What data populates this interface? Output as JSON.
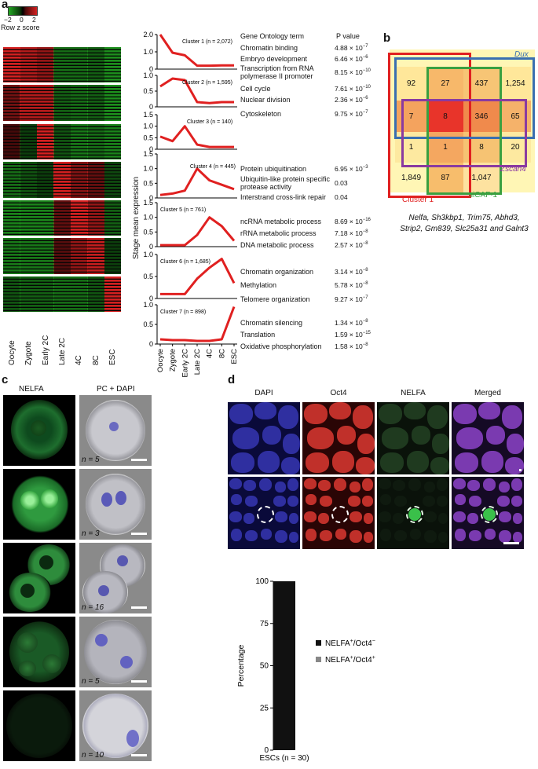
{
  "panel_a": {
    "letter": "a",
    "colorbar": {
      "ticks": [
        "−2",
        "0",
        "2"
      ],
      "label": "Row z score",
      "colors": [
        "#22a822",
        "#000000",
        "#d42020"
      ]
    },
    "heatmap_columns": [
      "Oocyte",
      "Zygote",
      "Early 2C",
      "Late 2C",
      "4C",
      "8C",
      "ESC"
    ],
    "go_header": "Gene Ontology term",
    "p_header": "P value",
    "y_axis_label": "Stage mean expression",
    "clusters": [
      {
        "label": "Cluster 1 (n = 2,072)",
        "ylim": [
          0,
          2.0
        ],
        "yticks": [
          "0",
          "1.0",
          "2.0"
        ],
        "values": [
          2.0,
          0.95,
          0.8,
          0.2,
          0.2,
          0.22,
          0.22
        ],
        "terms": [
          [
            "Chromatin binding",
            "4.88 × 10−7"
          ],
          [
            "Embryo development",
            "6.46 × 10−6"
          ],
          [
            "Transcription from RNA polymerase II promoter",
            "8.15 × 10−10"
          ]
        ]
      },
      {
        "label": "Cluster 2 (n = 1,595)",
        "ylim": [
          0,
          1.0
        ],
        "yticks": [
          "0",
          "0.5",
          "1.0"
        ],
        "values": [
          0.65,
          0.9,
          0.85,
          0.15,
          0.12,
          0.15,
          0.15
        ],
        "terms": [
          [
            "Cell cycle",
            "7.61 × 10−10"
          ],
          [
            "Nuclear division",
            "2.36 × 10−6"
          ],
          [
            "Cytoskeleton",
            "9.75 × 10−7"
          ]
        ]
      },
      {
        "label": "Cluster 3 (n = 140)",
        "ylim": [
          0,
          1.5
        ],
        "yticks": [
          "0",
          "0.5",
          "1.0",
          "1.5"
        ],
        "values": [
          0.55,
          0.35,
          1.0,
          0.2,
          0.1,
          0.1,
          0.1
        ],
        "terms": []
      },
      {
        "label": "Cluster 4 (n = 445)",
        "ylim": [
          0,
          1.5
        ],
        "yticks": [
          "0",
          "0.5",
          "1.0",
          "1.5"
        ],
        "values": [
          0.1,
          0.15,
          0.25,
          1.0,
          0.6,
          0.45,
          0.3
        ],
        "terms": [
          [
            "Protein ubiquitination",
            "6.95 × 10−3"
          ],
          [
            "Ubiquitin-like protein specific protease activity",
            "0.03"
          ],
          [
            "Interstrand cross-link repair",
            "0.04"
          ]
        ]
      },
      {
        "label": "Cluster 5 (n = 761)",
        "ylim": [
          0,
          1.5
        ],
        "yticks": [
          "0",
          "0.5",
          "1.0",
          "1.5"
        ],
        "values": [
          0.05,
          0.05,
          0.05,
          0.4,
          1.0,
          0.7,
          0.2
        ],
        "terms": [
          [
            "ncRNA metabolic process",
            "8.69 × 10−16"
          ],
          [
            "rRNA metabolic process",
            "7.18 × 10−8"
          ],
          [
            "DNA metabolic process",
            "2.57 × 10−8"
          ]
        ]
      },
      {
        "label": "Cluster 6 (n = 1,685)",
        "ylim": [
          0,
          1.0
        ],
        "yticks": [
          "0",
          "0.5",
          "1.0"
        ],
        "values": [
          0.1,
          0.1,
          0.1,
          0.45,
          0.7,
          0.9,
          0.35
        ],
        "terms": [
          [
            "Chromatin organization",
            "3.14 × 10−8"
          ],
          [
            "Methylation",
            "5.78 × 10−8"
          ],
          [
            "Telomere organization",
            "9.27 × 10−7"
          ]
        ]
      },
      {
        "label": "Cluster 7 (n = 898)",
        "ylim": [
          0,
          1.0
        ],
        "yticks": [
          "0",
          "0.5",
          "1.0"
        ],
        "values": [
          0.12,
          0.1,
          0.1,
          0.08,
          0.08,
          0.12,
          0.95
        ],
        "terms": [
          [
            "Chromatin silencing",
            "1.34 × 10−8"
          ],
          [
            "Translation",
            "1.59 × 10−15"
          ],
          [
            "Oxidative phosphorylation",
            "1.58 × 10−8"
          ]
        ]
      }
    ],
    "line_xticks": [
      "Oocyte",
      "Zygote",
      "Early 2C",
      "Late 2C",
      "4C",
      "8C",
      "ESC"
    ]
  },
  "panel_b": {
    "letter": "b",
    "sets": [
      {
        "name": "Dux",
        "color": "#3a6fb0"
      },
      {
        "name": "Zscan4",
        "color": "#8a3aa0"
      },
      {
        "name": "Cluster 1",
        "color": "#e02020"
      },
      {
        "name": "siCAF-1",
        "color": "#3aa040"
      }
    ],
    "grid_values": [
      [
        "92",
        "27",
        "437",
        "1,254"
      ],
      [
        "7",
        "8",
        "346",
        "65"
      ],
      [
        "1",
        "1",
        "8",
        "20"
      ],
      [
        "1,849",
        "87",
        "1,047",
        ""
      ]
    ],
    "caption": "Nelfa, Sh3kbp1, Trim75, Abhd3, Strip2, Gm839, Slc25a31 and Galnt3"
  },
  "panel_c": {
    "letter": "c",
    "col_headers": [
      "NELFA",
      "PC + DAPI"
    ],
    "n_labels": [
      "n = 5",
      "n = 3",
      "n = 16",
      "n = 5",
      "n = 10"
    ]
  },
  "panel_d": {
    "letter": "d",
    "col_headers": [
      "DAPI",
      "Oct4",
      "NELFA",
      "Merged"
    ],
    "chart_data": {
      "type": "bar",
      "categories": [
        "ESCs (n = 30)"
      ],
      "series": [
        {
          "name": "NELFA+/Oct4−",
          "values": [
            100
          ],
          "color": "#111111"
        },
        {
          "name": "NELFA+/Oct4+",
          "values": [
            0
          ],
          "color": "#888888"
        }
      ],
      "ylabel": "Percentage",
      "ylim": [
        0,
        100
      ],
      "yticks": [
        0,
        25,
        50,
        75,
        100
      ]
    }
  }
}
